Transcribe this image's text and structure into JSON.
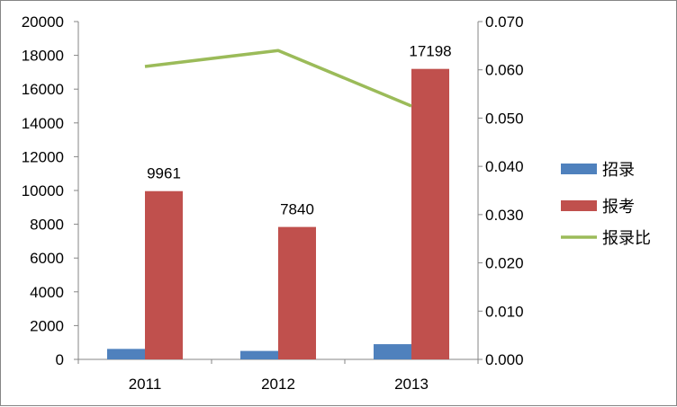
{
  "chart_data": {
    "type": "bar",
    "title": "",
    "xlabel": "",
    "ylabel": "",
    "y2label": "",
    "categories": [
      "2011",
      "2012",
      "2013"
    ],
    "ylim": [
      0,
      20000
    ],
    "y_ticks": [
      "0",
      "2000",
      "4000",
      "6000",
      "8000",
      "10000",
      "12000",
      "14000",
      "16000",
      "18000",
      "20000"
    ],
    "y2lim": [
      0,
      0.07
    ],
    "y2_ticks": [
      "0.000",
      "0.010",
      "0.020",
      "0.030",
      "0.040",
      "0.050",
      "0.060",
      "0.070"
    ],
    "grid": false,
    "legend_position": "right",
    "series": [
      {
        "name": "招录",
        "type": "bar",
        "axis": "primary",
        "color": "#4F81BD",
        "values": [
          620,
          500,
          900
        ],
        "data_labels": [
          "",
          "",
          ""
        ]
      },
      {
        "name": "报考",
        "type": "bar",
        "axis": "primary",
        "color": "#C0504D",
        "values": [
          9961,
          7840,
          17198
        ],
        "data_labels": [
          "9961",
          "7840",
          "17198"
        ]
      },
      {
        "name": "报录比",
        "type": "line",
        "axis": "secondary",
        "color": "#9BBB59",
        "values": [
          0.0607,
          0.064,
          0.0525
        ],
        "data_labels": [
          "",
          "",
          ""
        ]
      }
    ]
  }
}
